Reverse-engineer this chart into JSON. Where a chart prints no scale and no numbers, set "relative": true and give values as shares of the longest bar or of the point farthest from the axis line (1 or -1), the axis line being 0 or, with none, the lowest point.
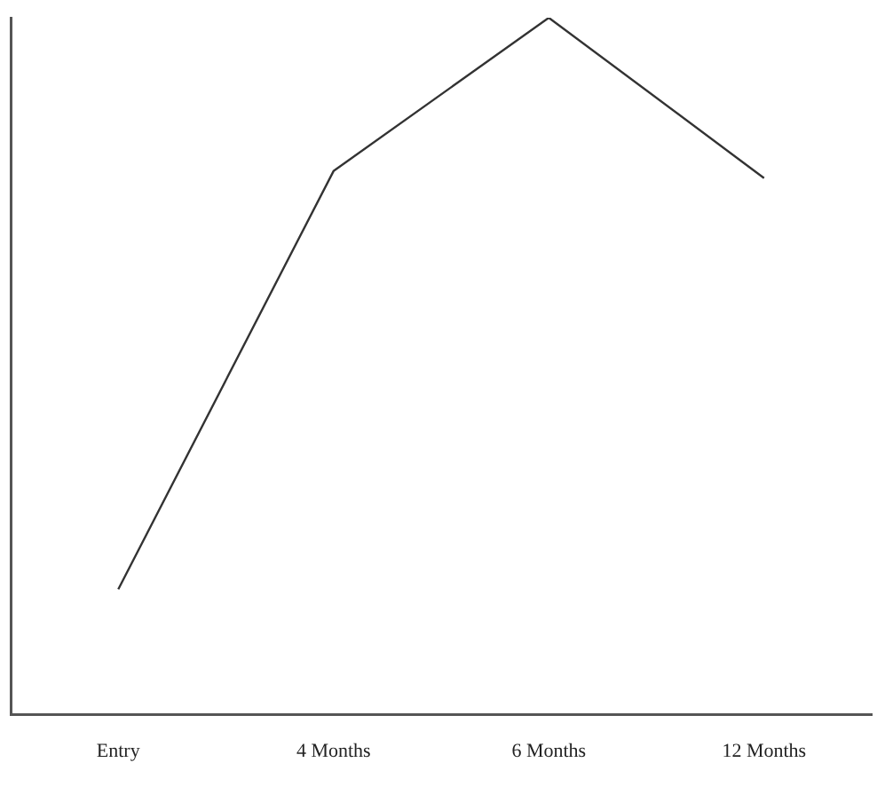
{
  "chart_data": {
    "type": "line",
    "relative": true,
    "categories": [
      "Entry",
      "4 Months",
      "6 Months",
      "12 Months"
    ],
    "series": [
      {
        "color": "#333333",
        "values": [
          0.18,
          0.78,
          1,
          0.77
        ]
      }
    ],
    "grid": false,
    "legend": false,
    "marker": "none",
    "line_style": "solid"
  }
}
